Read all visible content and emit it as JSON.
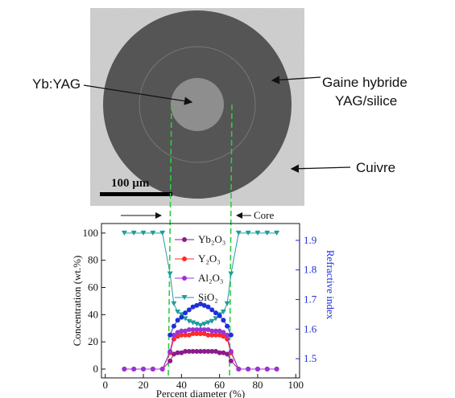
{
  "image": {
    "labels": [
      "Yb:YAG",
      "Gaine hybride",
      "YAG/silice",
      "Cuivre"
    ],
    "scale_bar": "100 µm",
    "core_label": "Core"
  },
  "chart_data": {
    "type": "line",
    "xlabel": "Percent diameter (%)",
    "ylabel": "Concentration (wt.%)",
    "y2label": "Refractive index",
    "x": [
      10,
      15,
      20,
      25,
      30,
      34,
      36,
      38,
      40,
      42,
      44,
      46,
      48,
      50,
      52,
      54,
      56,
      58,
      60,
      62,
      64,
      66,
      70,
      75,
      80,
      85,
      90
    ],
    "series": [
      {
        "name": "Yb₂O₃",
        "color": "#8b1a8b",
        "marker": "circle",
        "values": [
          0,
          0,
          0,
          0,
          0,
          6,
          11,
          12,
          12,
          13,
          13,
          13,
          13,
          13,
          13,
          13,
          13,
          13,
          12,
          12,
          11,
          6,
          0,
          0,
          0,
          0,
          0
        ]
      },
      {
        "name": "Y₂O₃",
        "color": "#ff2a2a",
        "marker": "circle",
        "values": [
          0,
          0,
          0,
          0,
          0,
          12,
          22,
          24,
          25,
          25,
          25,
          26,
          26,
          26,
          26,
          25,
          25,
          25,
          25,
          24,
          22,
          12,
          0,
          0,
          0,
          0,
          0
        ]
      },
      {
        "name": "Al₂O₃",
        "color": "#9b33d6",
        "marker": "circle",
        "values": [
          0,
          0,
          0,
          0,
          0,
          13,
          25,
          27,
          28,
          28,
          29,
          29,
          29,
          29,
          29,
          29,
          28,
          28,
          28,
          27,
          25,
          13,
          0,
          0,
          0,
          0,
          0
        ]
      },
      {
        "name": "SiO₂",
        "color": "#1e9c9c",
        "marker": "triangle-down",
        "values": [
          100,
          100,
          100,
          100,
          100,
          70,
          48,
          42,
          40,
          37,
          35,
          34,
          33,
          32,
          33,
          34,
          35,
          37,
          40,
          42,
          48,
          70,
          100,
          100,
          100,
          100,
          100
        ]
      },
      {
        "color": "#1f2fd8",
        "marker": "circle",
        "axis": "y2",
        "values": [
          null,
          null,
          null,
          null,
          null,
          1.58,
          1.61,
          1.63,
          1.64,
          1.655,
          1.665,
          1.675,
          1.68,
          1.685,
          1.68,
          1.675,
          1.665,
          1.655,
          1.645,
          1.63,
          1.61,
          1.58,
          null,
          null,
          null,
          null,
          null
        ]
      }
    ],
    "xlim": [
      -2,
      102
    ],
    "ylim": [
      -6.5,
      107
    ],
    "y2lim": [
      1.435,
      1.957
    ],
    "xticks": [
      0,
      20,
      40,
      60,
      80,
      100
    ],
    "yticks": [
      0,
      20,
      40,
      60,
      80,
      100
    ],
    "y2ticks": [
      1.5,
      1.6,
      1.7,
      1.8,
      1.9
    ],
    "legend": "upper center"
  }
}
